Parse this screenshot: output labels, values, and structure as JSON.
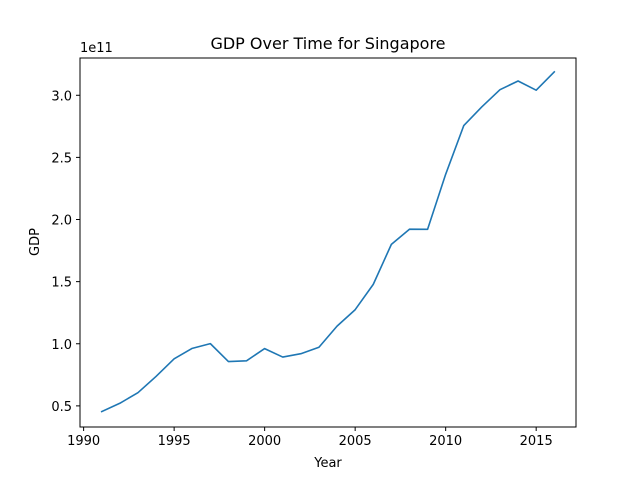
{
  "chart_data": {
    "type": "line",
    "title": "GDP Over Time for Singapore",
    "xlabel": "Year",
    "ylabel": "GDP",
    "y_offset_label": "1e11",
    "x_ticks": [
      "1990",
      "1995",
      "2000",
      "2005",
      "2010",
      "2015"
    ],
    "y_ticks": [
      "0.5",
      "1.0",
      "1.5",
      "2.0",
      "2.5",
      "3.0"
    ],
    "xlim": [
      1989.8,
      2017.2
    ],
    "ylim": [
      33000000000.0,
      330000000000.0
    ],
    "grid": false,
    "legend": "none",
    "line_color": "#1f77b4",
    "x": [
      1991,
      1992,
      1993,
      1994,
      1995,
      1996,
      1997,
      1998,
      1999,
      2000,
      2001,
      2002,
      2003,
      2004,
      2005,
      2006,
      2007,
      2008,
      2009,
      2010,
      2011,
      2012,
      2013,
      2014,
      2015,
      2016
    ],
    "series": [
      {
        "values": [
          45400000000,
          52100000000,
          60600000000,
          73700000000,
          87900000000,
          96300000000,
          100100000000,
          85700000000,
          86300000000,
          96100000000,
          89300000000,
          92000000000,
          97200000000,
          114200000000,
          127400000000,
          147800000000,
          180000000000,
          192200000000,
          192100000000,
          236400000000,
          275600000000,
          290700000000,
          304500000000,
          311500000000,
          304100000000,
          318800000000
        ]
      }
    ]
  }
}
